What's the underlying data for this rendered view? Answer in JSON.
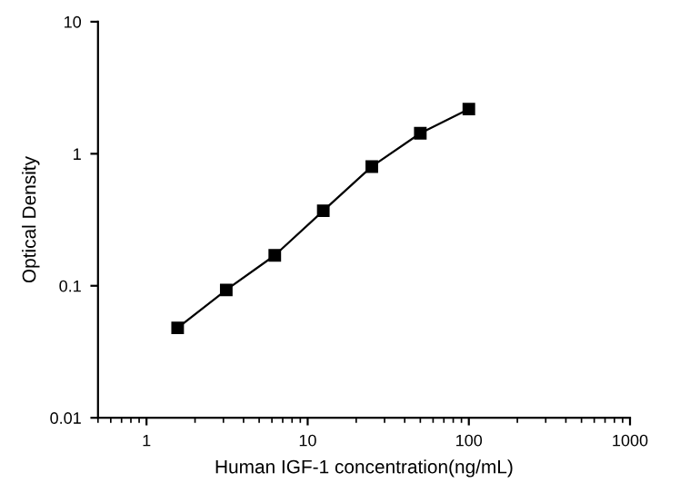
{
  "chart_data": {
    "type": "line",
    "xlabel": "Human IGF-1 concentration(ng/mL)",
    "ylabel": "Optical Density",
    "x": [
      1.56,
      3.125,
      6.25,
      12.5,
      25,
      50,
      100
    ],
    "series": [
      {
        "color": "#000000",
        "values": [
          0.048,
          0.093,
          0.17,
          0.37,
          0.8,
          1.43,
          2.18
        ]
      }
    ],
    "log": "xy",
    "xlim": [
      0.5,
      1000
    ],
    "ylim": [
      0.01,
      10
    ],
    "xticks": [
      1,
      10,
      100,
      1000
    ],
    "yticks": [
      0.01,
      0.1,
      1,
      10
    ],
    "marker": "square",
    "line_style": "solid",
    "grid": false,
    "legend": false
  }
}
